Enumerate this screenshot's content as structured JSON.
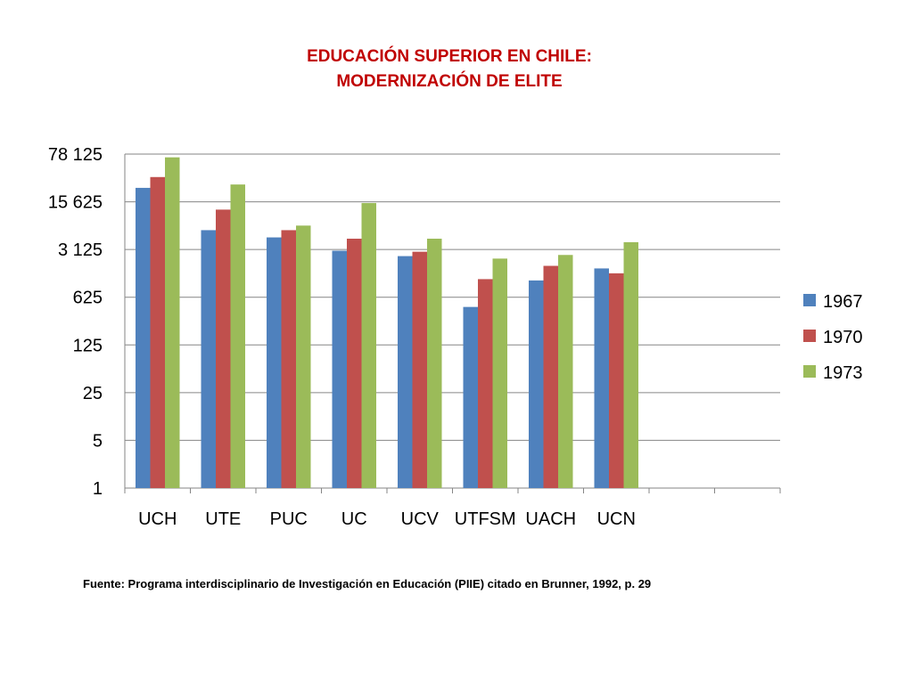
{
  "chart_data": {
    "type": "bar",
    "title": "EDUCACIÓN SUPERIOR EN CHILE:",
    "subtitle": "MODERNIZACIÓN DE ELITE",
    "xlabel": "",
    "ylabel": "",
    "y_scale": "log5",
    "ylim": [
      1,
      78125
    ],
    "yticks": [
      1,
      5,
      25,
      125,
      625,
      3125,
      15625,
      78125
    ],
    "ytick_labels": [
      "1",
      "5",
      "25",
      "125",
      "625",
      "3 125",
      "15 625",
      "78 125"
    ],
    "categories": [
      "UCH",
      "UTE",
      "PUC",
      "UC",
      "UCV",
      "UTFSM",
      "UACH",
      "UCN",
      "",
      ""
    ],
    "grid": true,
    "legend_position": "right",
    "series": [
      {
        "name": "1967",
        "color": "#4f81bd",
        "values": [
          25000,
          6000,
          4700,
          3000,
          2500,
          450,
          1100,
          1650,
          null,
          null
        ]
      },
      {
        "name": "1970",
        "color": "#c0504d",
        "values": [
          36000,
          12000,
          6000,
          4500,
          2900,
          1150,
          1800,
          1400,
          null,
          null
        ]
      },
      {
        "name": "1973",
        "color": "#9bbb59",
        "values": [
          70000,
          28000,
          7000,
          15000,
          4500,
          2300,
          2600,
          4000,
          null,
          null
        ]
      }
    ]
  },
  "source_note": "Fuente: Programa interdisciplinario de Investigación en Educación (PIIE) citado en Brunner, 1992, p. 29"
}
